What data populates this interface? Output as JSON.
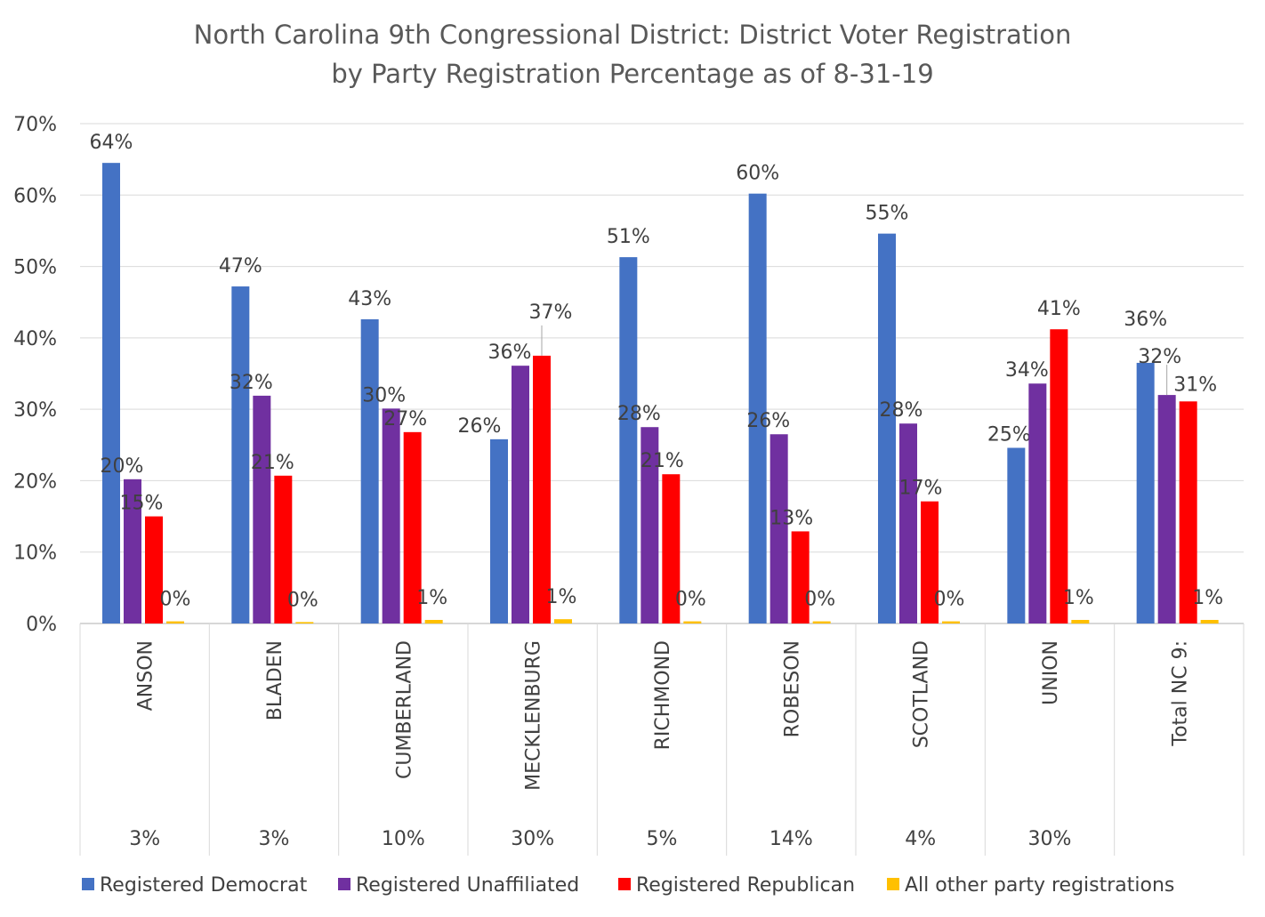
{
  "chart_data": {
    "type": "bar",
    "title": [
      "North Carolina 9th Congressional District: District Voter Registration",
      "by Party Registration Percentage as of 8-31-19"
    ],
    "ylim": [
      0,
      70
    ],
    "ytick_labels": [
      "0%",
      "10%",
      "20%",
      "30%",
      "40%",
      "50%",
      "60%",
      "70%"
    ],
    "categories": [
      "ANSON",
      "BLADEN",
      "CUMBERLAND",
      "MECKLENBURG",
      "RICHMOND",
      "ROBESON",
      "SCOTLAND",
      "UNION",
      "Total NC 9:"
    ],
    "secondary_labels": [
      "3%",
      "3%",
      "10%",
      "30%",
      "5%",
      "14%",
      "4%",
      "30%",
      ""
    ],
    "series": [
      {
        "name": "Registered Democrat",
        "color": "#4472C4",
        "values": [
          64.5,
          47.2,
          42.6,
          25.8,
          51.3,
          60.2,
          54.6,
          24.6,
          36.5
        ],
        "labels": [
          "64%",
          "47%",
          "43%",
          "26%",
          "51%",
          "60%",
          "55%",
          "25%",
          "36%"
        ]
      },
      {
        "name": "Registered Unaffiliated",
        "color": "#7030A0",
        "values": [
          20.2,
          31.9,
          30.1,
          36.1,
          27.5,
          26.5,
          28.0,
          33.6,
          32.0
        ],
        "labels": [
          "20%",
          "32%",
          "30%",
          "36%",
          "28%",
          "26%",
          "28%",
          "34%",
          "32%"
        ]
      },
      {
        "name": "Registered Republican",
        "color": "#FF0000",
        "values": [
          15.0,
          20.7,
          26.8,
          37.5,
          20.9,
          12.9,
          17.1,
          41.2,
          31.1
        ],
        "labels": [
          "15%",
          "21%",
          "27%",
          "37%",
          "21%",
          "13%",
          "17%",
          "41%",
          "31%"
        ]
      },
      {
        "name": "All other party registrations",
        "color": "#FFC000",
        "values": [
          0.3,
          0.2,
          0.5,
          0.6,
          0.3,
          0.3,
          0.3,
          0.5,
          0.5
        ],
        "labels": [
          "0%",
          "0%",
          "1%",
          "1%",
          "0%",
          "0%",
          "0%",
          "1%",
          "1%"
        ]
      }
    ],
    "gridlines": true,
    "legend_position": "bottom"
  }
}
